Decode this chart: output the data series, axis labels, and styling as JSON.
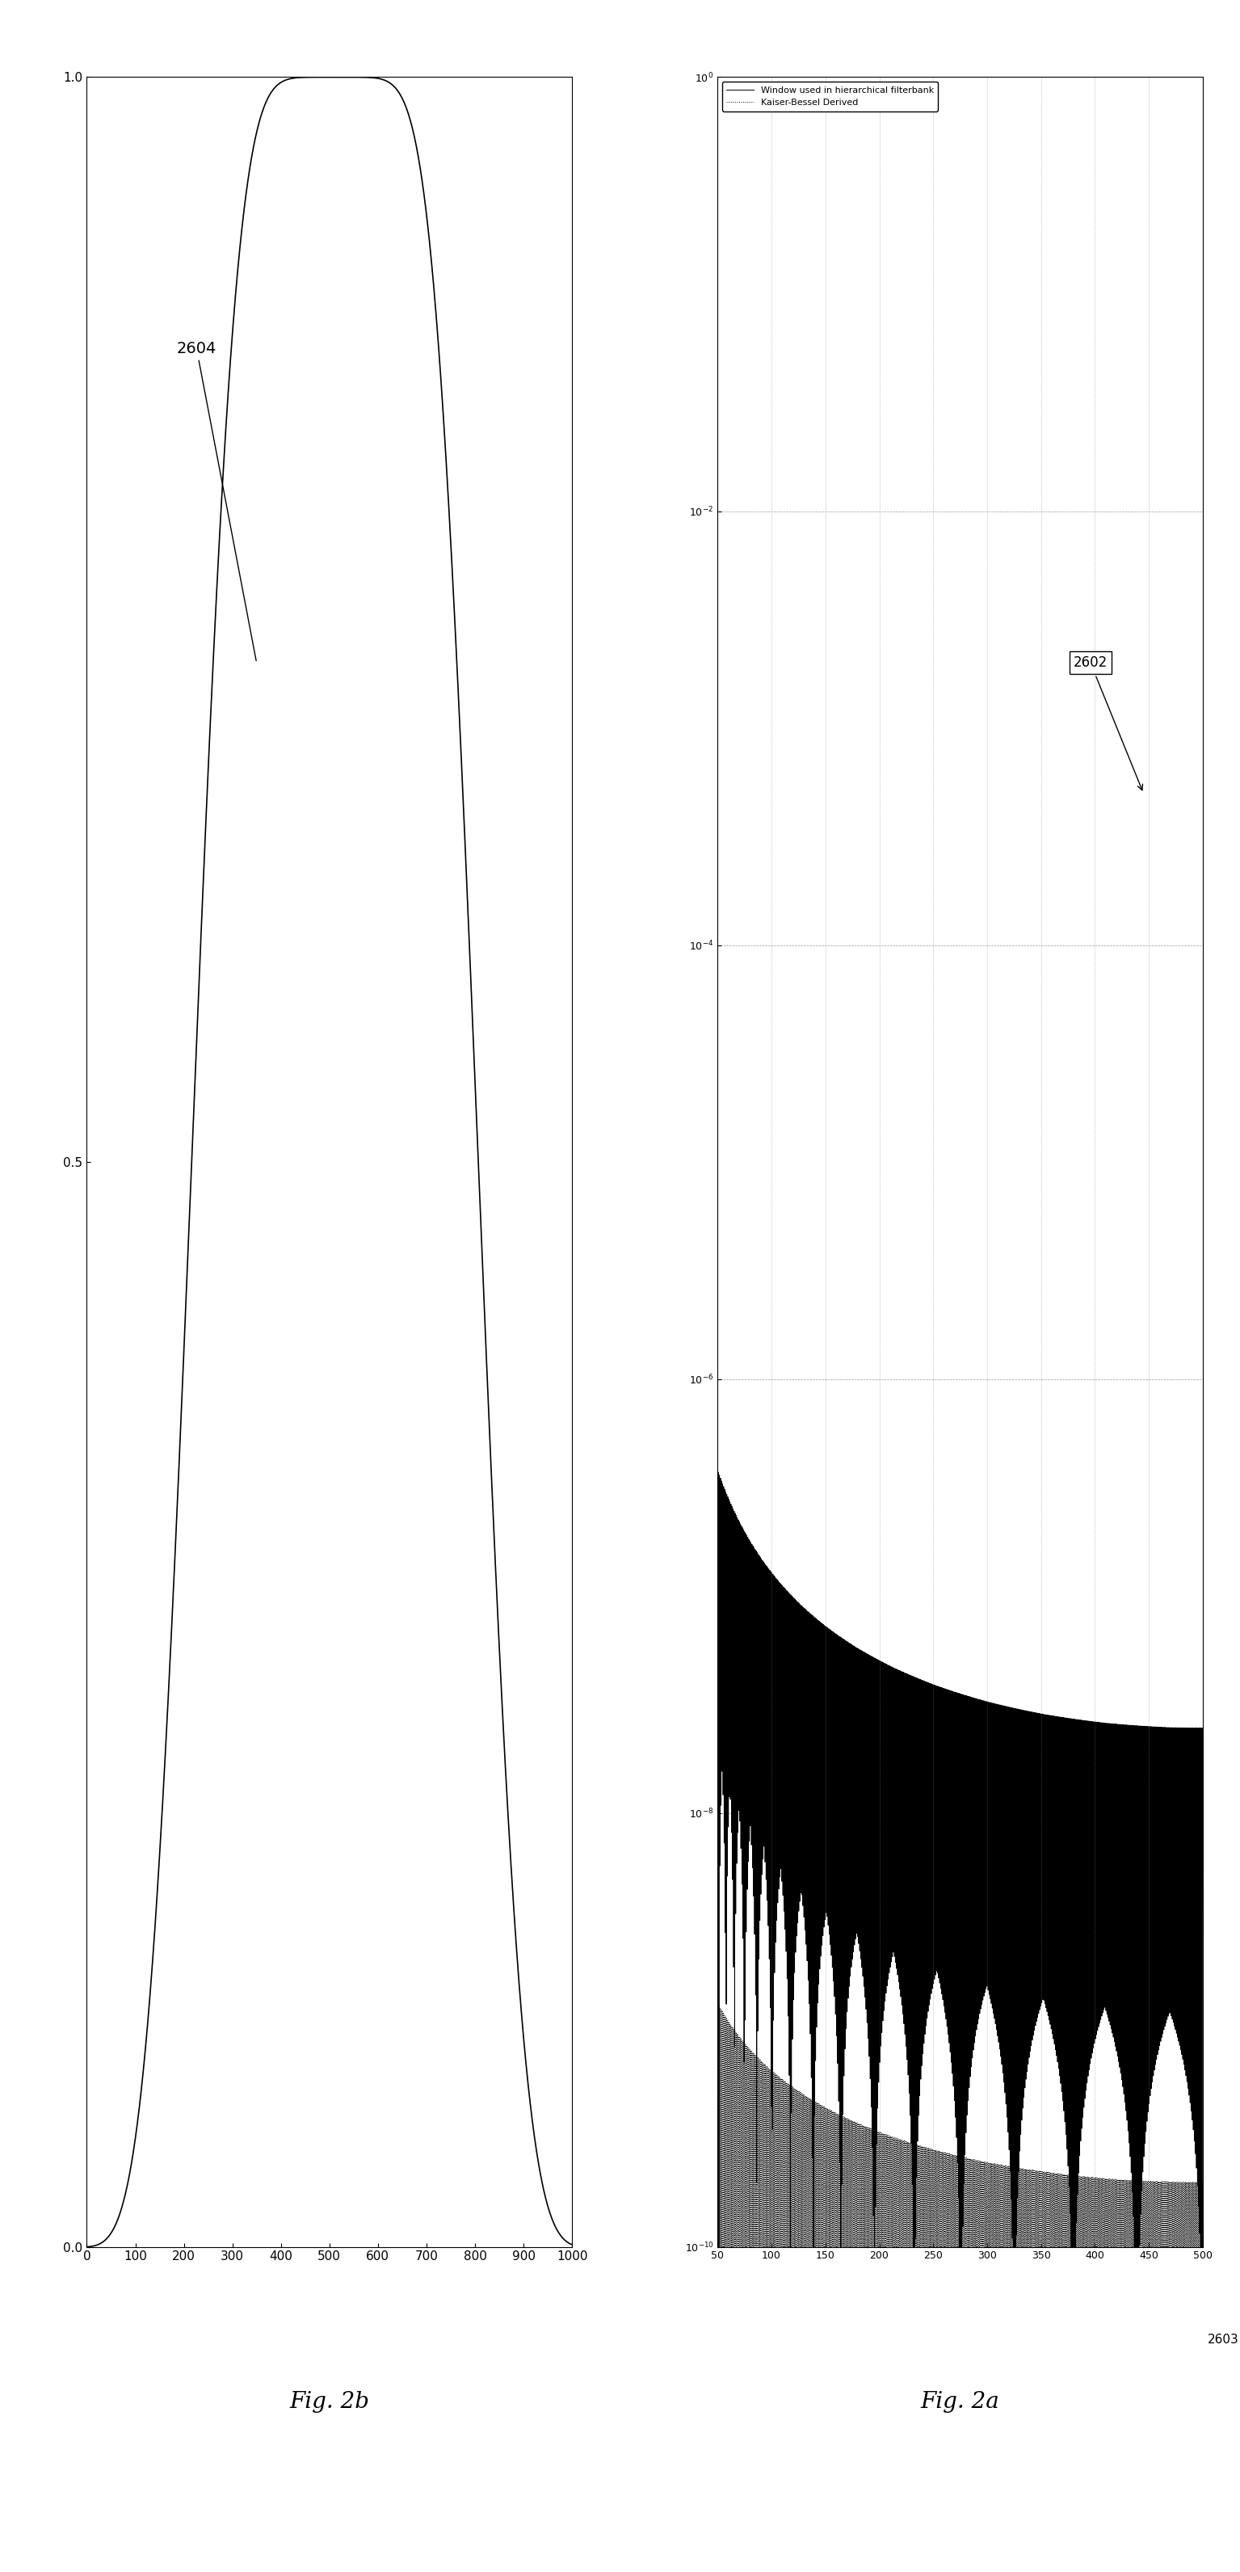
{
  "fig2b_xlim": [
    0,
    1000
  ],
  "fig2b_ylim": [
    0,
    1
  ],
  "fig2b_xticks": [
    0,
    100,
    200,
    300,
    400,
    500,
    600,
    700,
    800,
    900,
    1000
  ],
  "fig2b_yticks": [
    0,
    0.5,
    1
  ],
  "fig2b_label": "2604",
  "fig2b_title": "Fig. 2b",
  "fig2a_xlim": [
    50,
    500
  ],
  "fig2a_xticks": [
    50,
    100,
    150,
    200,
    250,
    300,
    350,
    400,
    450,
    500
  ],
  "fig2a_yticks_exp": [
    0,
    -2,
    -4,
    -6,
    -8,
    -10
  ],
  "fig2a_label": "2602",
  "fig2a_title": "Fig. 2a",
  "legend_line1": "Window used in hierarchical filterbank",
  "legend_line2": "Kaiser-Bessel Derived",
  "label_2603": "2603",
  "background_color": "#ffffff",
  "line_color": "#000000",
  "window_N": 1024,
  "kaiser_beta": 6.0,
  "fig_width": 15.35,
  "fig_height": 31.83
}
